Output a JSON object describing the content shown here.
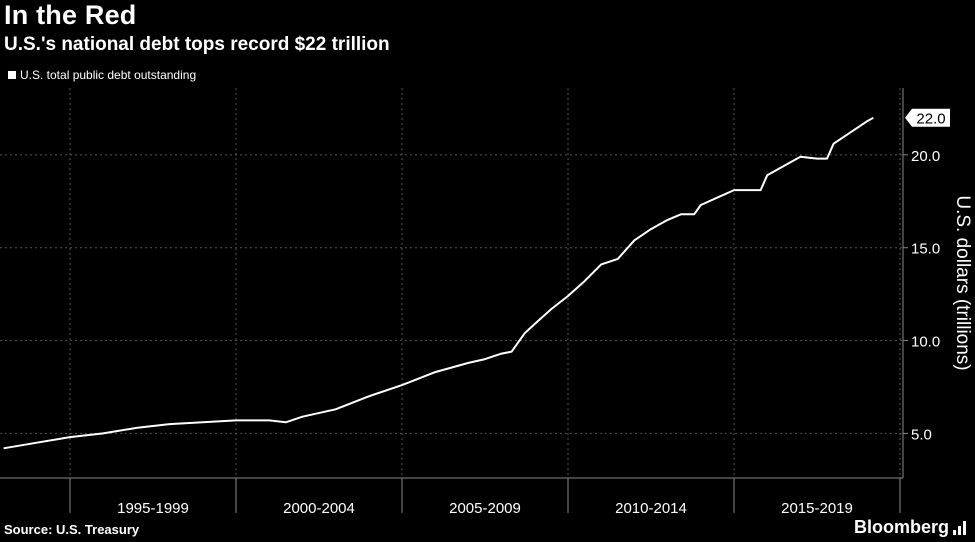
{
  "header": {
    "title": "In the Red",
    "subtitle": "U.S.'s national debt tops record $22 trillion"
  },
  "footer": {
    "source": "Source: U.S. Treasury",
    "brand": "Bloomberg",
    "brand_icon": "bar-chart-icon"
  },
  "colors": {
    "background": "#000000",
    "line": "#ffffff",
    "grid": "#555555"
  },
  "chart_data": {
    "type": "line",
    "title": "In the Red",
    "subtitle": "U.S.'s national debt tops record $22 trillion",
    "ylabel": "U.S. dollars (trillions)",
    "xlabel": "",
    "y_axis_side": "right",
    "ylim": [
      2.6,
      23.6
    ],
    "xlim": [
      1993.0,
      2019.5
    ],
    "yticks": [
      5.0,
      10.0,
      15.0,
      20.0
    ],
    "ytick_labels": [
      "5.0",
      "10.0",
      "15.0",
      "20.0"
    ],
    "x_period_boundaries": [
      1995,
      2000,
      2005,
      2010,
      2015,
      2020
    ],
    "x_period_labels": [
      "1995-1999",
      "2000-2004",
      "2005-2009",
      "2010-2014",
      "2015-2019"
    ],
    "grid": true,
    "legend": {
      "position": "top-left",
      "entries": [
        "U.S. total public debt outstanding"
      ]
    },
    "last_value_label": "22.0",
    "series": [
      {
        "name": "U.S. total public debt outstanding",
        "x": [
          1993.0,
          1994.0,
          1995.0,
          1996.0,
          1997.0,
          1998.0,
          1999.0,
          2000.0,
          2001.0,
          2001.5,
          2002.0,
          2003.0,
          2004.0,
          2005.0,
          2006.0,
          2007.0,
          2007.5,
          2008.0,
          2008.3,
          2008.7,
          2009.0,
          2009.5,
          2010.0,
          2010.5,
          2011.0,
          2011.5,
          2012.0,
          2012.5,
          2013.0,
          2013.4,
          2013.8,
          2014.0,
          2014.5,
          2015.0,
          2015.8,
          2016.0,
          2016.5,
          2017.0,
          2017.5,
          2017.8,
          2018.0,
          2018.5,
          2019.0,
          2019.2
        ],
        "values": [
          4.2,
          4.5,
          4.8,
          5.0,
          5.3,
          5.5,
          5.6,
          5.7,
          5.7,
          5.6,
          5.9,
          6.3,
          7.0,
          7.6,
          8.3,
          8.8,
          9.0,
          9.3,
          9.4,
          10.4,
          10.9,
          11.7,
          12.4,
          13.2,
          14.1,
          14.4,
          15.4,
          16.0,
          16.5,
          16.8,
          16.8,
          17.3,
          17.7,
          18.1,
          18.1,
          18.9,
          19.4,
          19.9,
          19.8,
          19.8,
          20.6,
          21.2,
          21.8,
          22.0
        ]
      }
    ]
  }
}
